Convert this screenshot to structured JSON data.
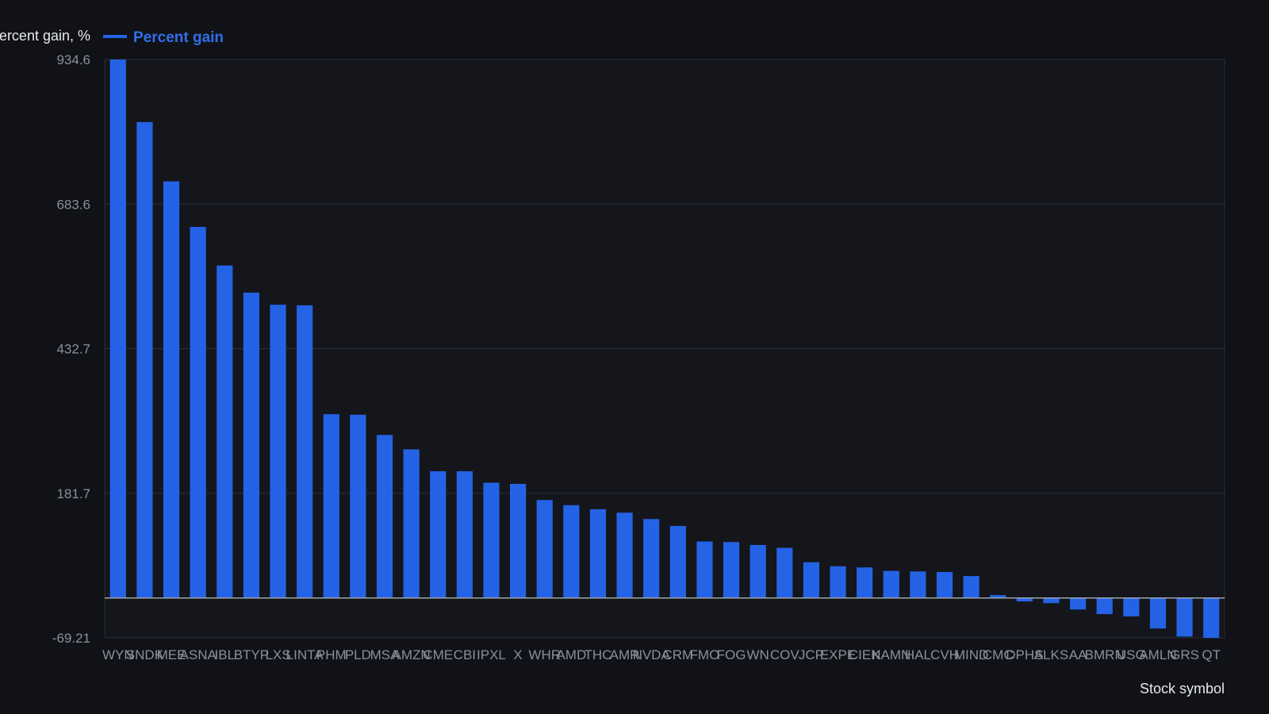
{
  "chart_data": {
    "type": "bar",
    "ylabel": "Percent gain, %",
    "xlabel": "Stock symbol",
    "legend": {
      "label": "Percent gain",
      "position": "top-left"
    },
    "ylim": [
      -69.21,
      934.6
    ],
    "y_ticks": [
      "934.6",
      "683.6",
      "432.7",
      "181.7",
      "-69.21"
    ],
    "y_tick_values": [
      934.6,
      683.6,
      432.7,
      181.7,
      -69.21
    ],
    "grid": true,
    "colors": {
      "bar": "#2563e6",
      "background": "#101217",
      "plot_background": "#14161c",
      "grid": "#2b2f38",
      "zero_line": "#9ba3ae",
      "tick_text": "#8a9099",
      "axis_title": "#e6e8eb",
      "legend_text": "#2f6fe8"
    },
    "categories": [
      "WYN",
      "SNDK",
      "MEE",
      "ASNA",
      "IBL",
      "BTYP",
      "LXS",
      "LINTA",
      "PHM",
      "PLD",
      "MSA",
      "AMZN",
      "CME",
      "CBI",
      "IPXL",
      "X",
      "WHR",
      "AMD",
      "THC",
      "AMR",
      "NVDA",
      "CRM",
      "FMO",
      "FOG",
      "WN",
      "COV",
      "JCP",
      "EXPE",
      "CIEN",
      "KAMN",
      "HAL",
      "CVH",
      "MIND",
      "CMC",
      "DPHS",
      "ALKS",
      "AA",
      "BMRN",
      "USG",
      "AMLN",
      "GRS",
      "QT"
    ],
    "series": [
      {
        "name": "Percent gain",
        "values": [
          934.6,
          826,
          723,
          644,
          577,
          530,
          509,
          508,
          319,
          318,
          283,
          258,
          220,
          220,
          200,
          198,
          170,
          161,
          154,
          148,
          137,
          125,
          98,
          97,
          92,
          87,
          62,
          55,
          53,
          47,
          46,
          45,
          38,
          5,
          -6,
          -9,
          -20,
          -28,
          -32,
          -53,
          -67,
          -69.21
        ]
      }
    ]
  }
}
